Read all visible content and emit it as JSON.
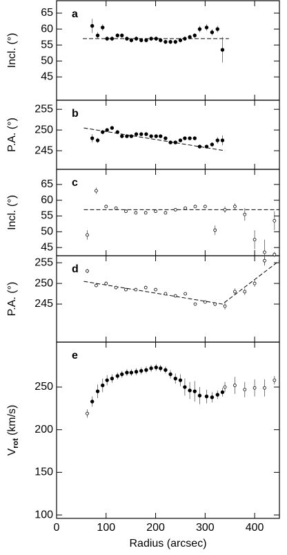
{
  "chart_data": [
    {
      "type": "scatter",
      "panel_label": "a",
      "ylabel": "Incl. (°)",
      "xlim": [
        0,
        450
      ],
      "xticks": [
        0,
        100,
        200,
        300,
        400
      ],
      "ylim": [
        37.7,
        68.9
      ],
      "yticks": [
        45,
        50,
        55,
        60,
        65
      ],
      "series": [
        {
          "marker": "filled",
          "color": "#000000",
          "x": [
            72,
            83,
            93,
            102,
            112,
            123,
            132,
            142,
            151,
            161,
            171,
            181,
            191,
            201,
            210,
            220,
            230,
            240,
            250,
            259,
            269,
            279,
            289,
            303,
            314,
            325,
            335
          ],
          "values": [
            61,
            58,
            60.5,
            57,
            57,
            58,
            58,
            57,
            56.5,
            57,
            56.5,
            56.5,
            57,
            57,
            56.5,
            56,
            56,
            56,
            56.5,
            57,
            57.5,
            58,
            60,
            60.5,
            59,
            60,
            53.5
          ],
          "errors": [
            2.2,
            1,
            1,
            0.7,
            0.7,
            0.7,
            0.7,
            0.7,
            0.7,
            0.7,
            0.7,
            0.7,
            0.7,
            0.7,
            0.7,
            0.7,
            0.7,
            0.7,
            0.7,
            0.7,
            0.7,
            0.7,
            1,
            1,
            1,
            1,
            4
          ]
        }
      ],
      "lines": [
        {
          "style": "dashed",
          "x": [
            53,
            348
          ],
          "values": [
            57,
            57
          ]
        }
      ]
    },
    {
      "type": "scatter",
      "panel_label": "b",
      "ylabel": "P.A. (°)",
      "xlim": [
        0,
        450
      ],
      "xticks": [
        0,
        100,
        200,
        300,
        400
      ],
      "ylim": [
        240.5,
        257.2
      ],
      "yticks": [
        245,
        250,
        255
      ],
      "series": [
        {
          "marker": "filled",
          "color": "#000000",
          "x": [
            72,
            83,
            93,
            102,
            112,
            123,
            132,
            142,
            151,
            161,
            171,
            181,
            191,
            201,
            210,
            220,
            230,
            240,
            250,
            259,
            269,
            279,
            289,
            303,
            314,
            325,
            335
          ],
          "values": [
            248,
            247.5,
            249.5,
            250,
            250.5,
            249.5,
            248.5,
            248.5,
            248.5,
            249,
            249,
            249,
            248.5,
            248.5,
            248.5,
            248,
            247,
            247,
            247.5,
            248,
            248,
            248,
            246,
            246,
            246.5,
            247.5,
            247.5
          ],
          "errors": [
            1,
            0.6,
            0.5,
            0.4,
            0.4,
            0.4,
            0.4,
            0.4,
            0.4,
            0.4,
            0.4,
            0.4,
            0.4,
            0.4,
            0.4,
            0.4,
            0.4,
            0.4,
            0.4,
            0.4,
            0.4,
            0.4,
            0.4,
            0.4,
            0.5,
            0.8,
            1.2
          ]
        }
      ],
      "lines": [
        {
          "style": "dashed",
          "x": [
            55,
            340
          ],
          "values": [
            250.5,
            245
          ]
        }
      ]
    },
    {
      "type": "scatter",
      "panel_label": "c",
      "ylabel": "Incl. (°)",
      "xlim": [
        0,
        450
      ],
      "xticks": [
        0,
        100,
        200,
        300,
        400
      ],
      "ylim": [
        42.4,
        69.8
      ],
      "yticks": [
        45,
        50,
        55,
        60,
        65
      ],
      "series": [
        {
          "marker": "open",
          "color": "#000000",
          "x": [
            62,
            80,
            100,
            120,
            140,
            160,
            180,
            200,
            220,
            240,
            260,
            280,
            300,
            320,
            340,
            360,
            380,
            400,
            420,
            440
          ],
          "values": [
            49,
            63,
            58,
            57.5,
            56.5,
            56,
            56,
            56.5,
            56,
            57,
            57.5,
            58,
            58,
            50.5,
            57,
            58,
            55.5,
            47.5,
            43.5,
            53.5
          ],
          "errors": [
            1.5,
            1,
            0.5,
            0.5,
            0.5,
            0.5,
            0.5,
            0.5,
            0.5,
            0.5,
            0.5,
            0.5,
            0.5,
            1.5,
            1,
            1,
            2,
            3,
            4,
            3
          ]
        }
      ],
      "lines": [
        {
          "style": "dashed",
          "x": [
            55,
            450
          ],
          "values": [
            57,
            57
          ]
        }
      ]
    },
    {
      "type": "scatter",
      "panel_label": "d",
      "ylabel": "P.A. (°)",
      "xlim": [
        0,
        450
      ],
      "xticks": [
        0,
        100,
        200,
        300,
        400
      ],
      "ylim": [
        235.8,
        256.7
      ],
      "yticks": [
        245,
        250,
        255
      ],
      "series": [
        {
          "marker": "open",
          "color": "#000000",
          "x": [
            62,
            80,
            100,
            120,
            140,
            160,
            180,
            200,
            220,
            240,
            260,
            280,
            300,
            320,
            340,
            360,
            380,
            400,
            420,
            440
          ],
          "values": [
            253,
            249.5,
            250,
            249,
            248.5,
            248.5,
            249,
            248.5,
            247.5,
            247,
            247.5,
            245,
            245.5,
            245,
            244.5,
            248,
            248,
            250,
            255.5,
            257
          ],
          "errors": [
            0.5,
            0.3,
            0.3,
            0.3,
            0.3,
            0.3,
            0.3,
            0.3,
            0.3,
            0.3,
            0.3,
            0.3,
            0.3,
            0.5,
            0.8,
            0.8,
            0.8,
            0.8,
            1.2,
            0.6
          ]
        }
      ],
      "lines": [
        {
          "style": "dashed",
          "x": [
            55,
            335,
            450
          ],
          "values": [
            250.5,
            245,
            255.5
          ]
        }
      ]
    },
    {
      "type": "scatter",
      "panel_label": "e",
      "ylabel": "V",
      "ylabel_sub": "rot",
      "ylabel_unit": "(km/s)",
      "xlabel": "Radius (arcsec)",
      "xlim": [
        0,
        450
      ],
      "xticks": [
        0,
        100,
        200,
        300,
        400
      ],
      "ylim": [
        96,
        302.7
      ],
      "yticks": [
        100,
        150,
        200,
        250
      ],
      "series": [
        {
          "marker": "filled",
          "color": "#000000",
          "x": [
            72,
            83,
            93,
            102,
            112,
            123,
            132,
            142,
            151,
            161,
            171,
            181,
            191,
            201,
            210,
            220,
            230,
            240,
            250,
            259,
            269,
            279,
            289,
            303,
            314,
            325,
            335
          ],
          "values": [
            233,
            245,
            252,
            258,
            260,
            263,
            265,
            267,
            267,
            268,
            269,
            270,
            272,
            273,
            272,
            270,
            265,
            260,
            258,
            250,
            246,
            245,
            240,
            239,
            238,
            241,
            244
          ],
          "errors": [
            6,
            8,
            8,
            6,
            5,
            4,
            4,
            4,
            4,
            4,
            4,
            4,
            4,
            4,
            4,
            4,
            5,
            6,
            7,
            10,
            10,
            12,
            10,
            8,
            6,
            5,
            5
          ]
        },
        {
          "marker": "open",
          "color": "#000000",
          "x": [
            62,
            340,
            360,
            380,
            400,
            420,
            440
          ],
          "values": [
            219,
            250,
            252,
            247,
            249,
            249,
            258
          ],
          "errors": [
            5,
            6,
            10,
            9,
            10,
            10,
            5
          ]
        }
      ],
      "lines": []
    }
  ]
}
